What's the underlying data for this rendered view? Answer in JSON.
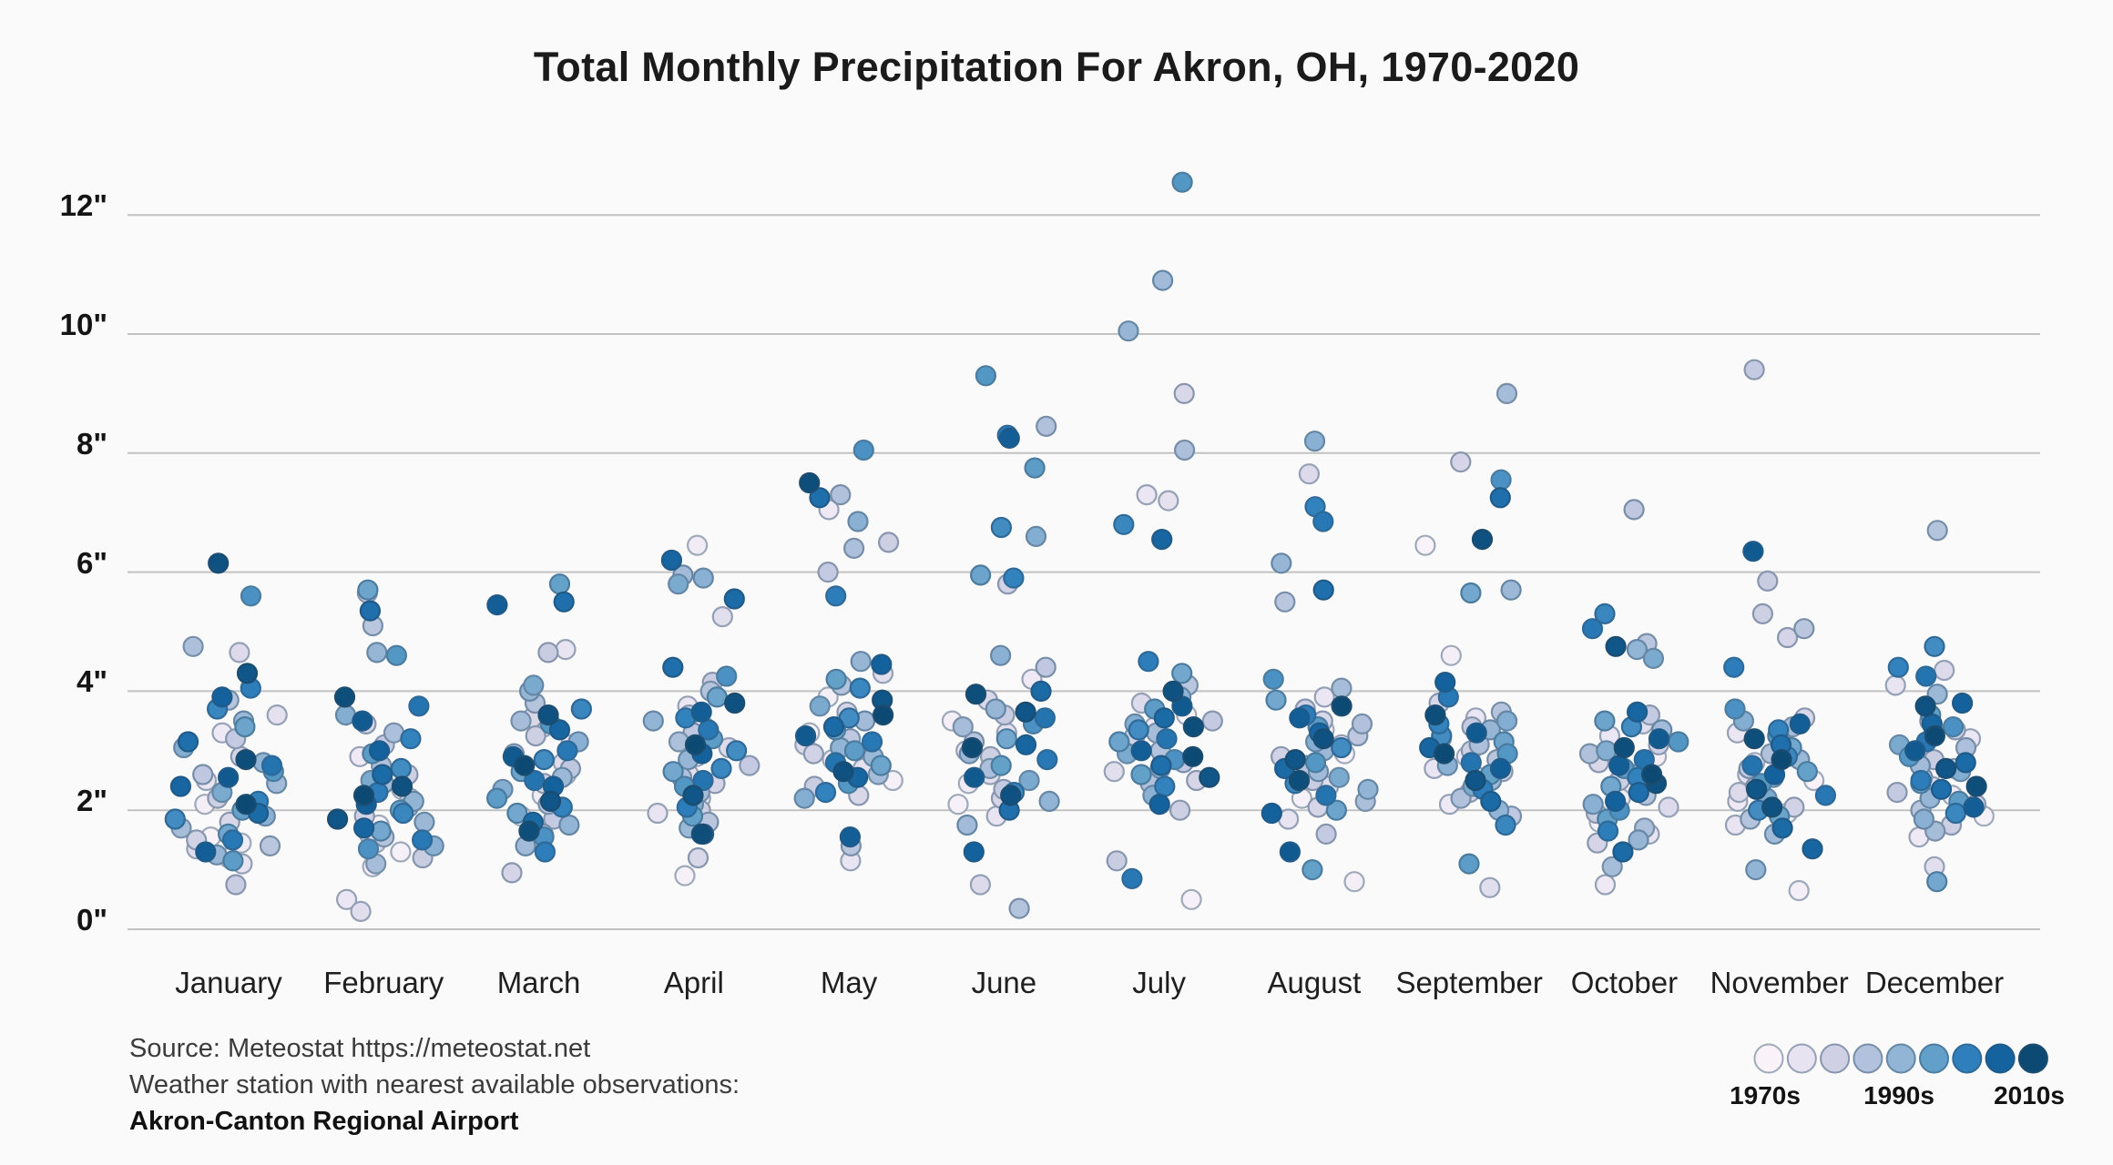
{
  "chart_data": {
    "type": "scatter",
    "title": "Total Monthly Precipitation For Akron, OH, 1970-2020",
    "categories": [
      "January",
      "February",
      "March",
      "April",
      "May",
      "June",
      "July",
      "August",
      "September",
      "October",
      "November",
      "December"
    ],
    "y_unit": "inches",
    "yticks": [
      0,
      2,
      4,
      6,
      8,
      10,
      12
    ],
    "ytick_labels": [
      "0\"",
      "2\"",
      "4\"",
      "6\"",
      "8\"",
      "10\"",
      "12\""
    ],
    "ylim": [
      0,
      12.8
    ],
    "grid": true,
    "year_range": [
      1970,
      2020
    ],
    "background_color": "#fafafa",
    "gridline_color": "#c2c2c2",
    "color_ramp": [
      "#f9f3f9",
      "#e8e3f1",
      "#cfd0e4",
      "#b2c2dc",
      "#92b4d5",
      "#62a0c9",
      "#2e7fbc",
      "#14639f",
      "#0d4a73"
    ],
    "values_by_month": [
      [
        1.55,
        1.2,
        2.1,
        1.45,
        3.3,
        2.5,
        1.1,
        3.6,
        1.35,
        4.65,
        1.8,
        2.9,
        1.5,
        2.2,
        0.75,
        3.2,
        2.6,
        1.4,
        3.85,
        2.05,
        4.75,
        1.7,
        2.45,
        3.5,
        1.25,
        2.8,
        1.9,
        3.05,
        2.3,
        1.6,
        3.4,
        2.0,
        1.15,
        2.65,
        5.6,
        1.85,
        3.7,
        2.15,
        4.05,
        1.5,
        2.75,
        3.15,
        1.95,
        2.4,
        3.9,
        1.3,
        2.55,
        4.3,
        6.15,
        2.85,
        2.1
      ],
      [
        1.75,
        1.3,
        2.35,
        1.05,
        2.9,
        0.5,
        1.6,
        2.2,
        0.3,
        1.45,
        3.45,
        5.65,
        1.9,
        2.6,
        1.2,
        3.1,
        2.05,
        5.1,
        1.55,
        2.75,
        3.3,
        1.1,
        2.45,
        1.8,
        4.65,
        2.15,
        1.4,
        3.6,
        2.5,
        1.65,
        5.7,
        2.0,
        2.95,
        4.6,
        1.35,
        2.7,
        1.95,
        3.2,
        2.3,
        1.5,
        3.75,
        5.35,
        2.6,
        1.7,
        3.0,
        2.1,
        3.5,
        1.85,
        2.4,
        3.9,
        2.25
      ],
      [
        2.6,
        1.9,
        3.1,
        2.25,
        1.5,
        3.4,
        4.7,
        2.0,
        2.8,
        1.7,
        3.55,
        0.95,
        2.45,
        3.25,
        4.65,
        1.85,
        2.7,
        2.1,
        3.8,
        1.6,
        2.95,
        3.5,
        1.4,
        2.55,
        4.0,
        1.75,
        3.15,
        2.35,
        4.1,
        1.95,
        2.65,
        5.8,
        2.2,
        3.45,
        1.55,
        2.85,
        3.7,
        2.05,
        1.3,
        3.0,
        2.5,
        5.5,
        1.8,
        3.35,
        2.4,
        5.45,
        2.9,
        2.15,
        3.6,
        1.65,
        2.75
      ],
      [
        2.9,
        0.9,
        3.4,
        6.45,
        2.2,
        3.75,
        1.95,
        2.6,
        5.25,
        3.05,
        1.2,
        2.45,
        3.6,
        2.0,
        4.15,
        2.75,
        3.3,
        1.8,
        4.0,
        2.55,
        3.15,
        2.3,
        5.95,
        1.7,
        2.85,
        3.5,
        5.9,
        2.1,
        5.8,
        2.65,
        3.9,
        1.9,
        3.2,
        2.4,
        4.25,
        3.0,
        2.7,
        3.55,
        2.05,
        3.35,
        2.5,
        4.4,
        5.55,
        6.2,
        2.95,
        3.65,
        1.6,
        2.25,
        3.8,
        1.6,
        3.1
      ],
      [
        3.3,
        2.5,
        3.9,
        2.85,
        7.05,
        3.45,
        1.15,
        2.7,
        4.3,
        3.1,
        2.25,
        3.65,
        2.95,
        6.5,
        2.4,
        6.0,
        3.2,
        1.4,
        4.1,
        7.3,
        6.4,
        2.6,
        3.5,
        2.9,
        4.5,
        3.05,
        6.85,
        2.2,
        3.75,
        3.35,
        2.75,
        4.2,
        3.0,
        2.45,
        8.05,
        3.55,
        4.05,
        2.3,
        5.6,
        3.15,
        2.8,
        7.25,
        3.4,
        2.55,
        4.45,
        1.55,
        3.25,
        3.85,
        2.65,
        7.5,
        3.6
      ],
      [
        2.8,
        2.1,
        3.5,
        2.45,
        4.2,
        3.0,
        1.9,
        3.3,
        2.6,
        0.75,
        3.85,
        2.2,
        5.8,
        2.9,
        3.6,
        2.35,
        4.4,
        3.15,
        0.35,
        8.45,
        2.7,
        3.4,
        1.75,
        2.95,
        3.7,
        2.15,
        4.6,
        6.6,
        2.5,
        3.2,
        5.95,
        2.75,
        7.75,
        9.3,
        3.45,
        6.75,
        2.3,
        5.9,
        8.3,
        2.85,
        3.55,
        2.0,
        4.0,
        3.1,
        1.3,
        8.25,
        2.55,
        3.65,
        2.25,
        3.95,
        3.05
      ],
      [
        3.6,
        0.5,
        2.9,
        3.4,
        2.35,
        7.3,
        3.05,
        7.2,
        2.65,
        3.8,
        9.0,
        2.5,
        3.25,
        2.0,
        1.15,
        3.5,
        2.8,
        4.1,
        3.0,
        2.45,
        8.05,
        3.3,
        10.9,
        2.7,
        10.05,
        3.9,
        2.25,
        3.45,
        2.95,
        4.3,
        3.15,
        2.6,
        3.7,
        12.55,
        2.85,
        3.35,
        6.8,
        2.4,
        4.5,
        0.85,
        3.2,
        2.75,
        3.55,
        6.55,
        2.1,
        3.0,
        3.75,
        2.55,
        4.0,
        3.4,
        2.9
      ],
      [
        2.95,
        2.2,
        0.8,
        3.35,
        2.6,
        3.9,
        1.85,
        3.1,
        2.4,
        7.65,
        3.5,
        2.05,
        2.9,
        3.7,
        2.5,
        1.6,
        3.25,
        5.5,
        2.75,
        3.45,
        2.15,
        4.05,
        2.65,
        3.0,
        6.15,
        2.35,
        8.2,
        3.15,
        2.55,
        3.85,
        2.0,
        1.0,
        3.4,
        2.8,
        4.2,
        3.05,
        2.45,
        7.1,
        3.6,
        6.85,
        2.25,
        5.7,
        2.7,
        3.3,
        1.95,
        3.55,
        1.3,
        2.85,
        3.2,
        2.5,
        3.75
      ],
      [
        6.45,
        2.45,
        4.6,
        2.9,
        2.1,
        3.55,
        2.7,
        3.2,
        0.7,
        2.55,
        3.8,
        7.85,
        2.3,
        3.0,
        2.65,
        3.4,
        1.9,
        2.85,
        3.65,
        2.2,
        3.1,
        9.0,
        2.5,
        5.7,
        3.35,
        2.0,
        2.75,
        3.5,
        2.4,
        5.65,
        3.15,
        2.6,
        1.1,
        2.95,
        7.55,
        3.25,
        1.75,
        3.45,
        2.35,
        3.9,
        2.8,
        7.25,
        2.15,
        3.05,
        4.15,
        2.7,
        3.3,
        2.5,
        6.55,
        3.6,
        2.95
      ],
      [
        2.35,
        1.8,
        2.9,
        2.2,
        0.75,
        3.25,
        1.6,
        2.65,
        3.45,
        2.05,
        2.8,
        1.45,
        3.1,
        2.5,
        1.95,
        3.6,
        7.05,
        4.8,
        2.25,
        2.95,
        1.7,
        1.05,
        3.35,
        2.6,
        1.5,
        4.7,
        2.1,
        3.0,
        4.55,
        2.4,
        3.5,
        1.85,
        2.7,
        3.15,
        2.0,
        3.4,
        5.3,
        2.55,
        1.65,
        5.05,
        2.85,
        2.3,
        1.3,
        3.65,
        2.15,
        2.75,
        3.2,
        4.75,
        2.45,
        3.05,
        2.6
      ],
      [
        2.5,
        1.95,
        0.65,
        2.8,
        2.15,
        3.3,
        1.75,
        2.6,
        3.0,
        2.3,
        3.55,
        4.9,
        2.05,
        5.3,
        5.85,
        9.4,
        2.7,
        5.05,
        1.85,
        2.95,
        2.4,
        3.4,
        1.6,
        2.85,
        3.15,
        1.0,
        2.55,
        3.5,
        2.2,
        3.05,
        1.9,
        2.65,
        3.25,
        2.45,
        3.7,
        2.0,
        2.9,
        3.35,
        4.4,
        2.25,
        2.75,
        3.1,
        1.7,
        1.35,
        2.6,
        3.45,
        6.35,
        2.35,
        2.05,
        3.2,
        2.85
      ],
      [
        2.6,
        1.9,
        2.95,
        2.25,
        1.55,
        3.2,
        4.1,
        2.4,
        1.05,
        4.35,
        2.7,
        2.1,
        3.35,
        1.75,
        2.85,
        2.3,
        3.5,
        2.0,
        6.7,
        2.55,
        3.05,
        1.65,
        2.75,
        3.95,
        2.2,
        3.3,
        1.85,
        2.65,
        3.1,
        0.8,
        2.45,
        3.6,
        2.15,
        2.9,
        3.4,
        4.75,
        1.95,
        4.4,
        2.5,
        3.15,
        4.25,
        2.35,
        2.8,
        3.45,
        3.8,
        2.05,
        3.0,
        2.7,
        3.75,
        2.4,
        3.25
      ]
    ],
    "legend": {
      "labels": [
        "1970s",
        "1990s",
        "2010s"
      ],
      "swatch_count": 9
    }
  },
  "footer": {
    "line1": "Source: Meteostat https://meteostat.net",
    "line2": "Weather station with nearest available observations:",
    "line3": "Akron-Canton Regional Airport"
  }
}
